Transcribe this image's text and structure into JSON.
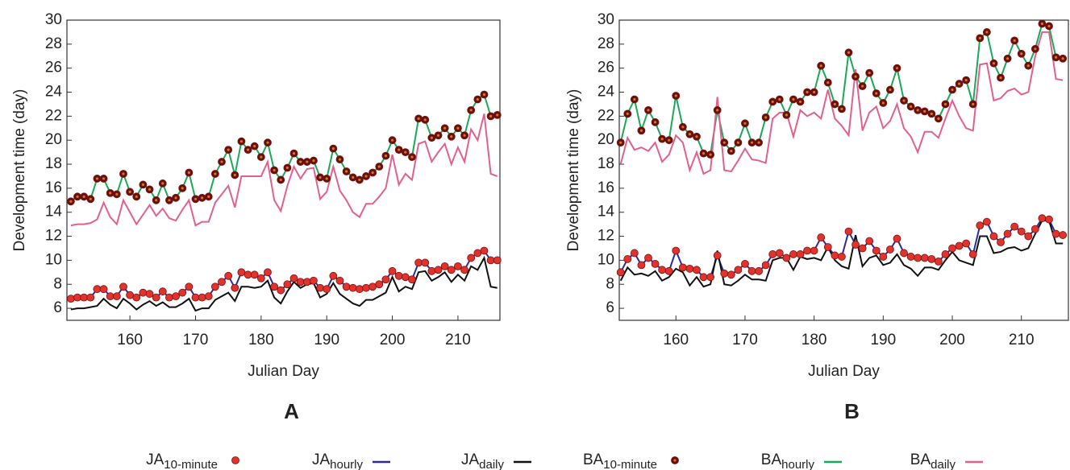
{
  "chart_data": [
    {
      "type": "line",
      "panel": "A",
      "xlabel": "Julian Day",
      "ylabel": "Development time (day)",
      "xlim": [
        150.4,
        216.4
      ],
      "xticks": [
        160,
        170,
        180,
        190,
        200,
        210
      ],
      "ylim": [
        5,
        30
      ],
      "yticks": [
        6,
        8,
        10,
        12,
        14,
        16,
        18,
        20,
        22,
        24,
        26,
        28,
        30
      ],
      "x": [
        151,
        152,
        153,
        154,
        155,
        156,
        157,
        158,
        159,
        160,
        161,
        162,
        163,
        164,
        165,
        166,
        167,
        168,
        169,
        170,
        171,
        172,
        173,
        174,
        175,
        176,
        177,
        178,
        179,
        180,
        181,
        182,
        183,
        184,
        185,
        186,
        187,
        188,
        189,
        190,
        191,
        192,
        193,
        194,
        195,
        196,
        197,
        198,
        199,
        200,
        201,
        202,
        203,
        204,
        205,
        206,
        207,
        208,
        209,
        210,
        211,
        212,
        213,
        214,
        215,
        216
      ],
      "series": [
        {
          "style": "dot",
          "color": "#e2322c",
          "values": [
            6.8,
            6.9,
            6.9,
            6.9,
            7.6,
            7.6,
            7.0,
            7.0,
            7.8,
            7.1,
            6.9,
            7.3,
            7.2,
            6.9,
            7.4,
            6.9,
            7.0,
            7.3,
            7.8,
            6.9,
            6.9,
            7.0,
            7.8,
            8.2,
            8.7,
            7.7,
            9.0,
            8.8,
            8.8,
            8.5,
            9.0,
            7.8,
            7.5,
            8.0,
            8.5,
            8.2,
            8.2,
            8.3,
            7.7,
            7.6,
            8.7,
            8.3,
            7.8,
            7.7,
            7.6,
            7.7,
            7.8,
            8.0,
            8.4,
            9.1,
            8.7,
            8.6,
            8.4,
            9.8,
            9.8,
            9.1,
            9.2,
            9.5,
            9.2,
            9.5,
            9.2,
            10.2,
            10.6,
            10.8,
            10.0,
            10.0
          ]
        },
        {
          "style": "line",
          "color": "#2b2b9c",
          "values": [
            6.8,
            6.9,
            6.9,
            6.9,
            7.6,
            7.6,
            7.0,
            7.0,
            7.8,
            7.1,
            6.9,
            7.3,
            7.2,
            6.9,
            7.4,
            6.9,
            7.0,
            7.3,
            7.8,
            6.9,
            6.9,
            7.0,
            7.8,
            8.2,
            8.7,
            7.7,
            9.0,
            8.8,
            8.8,
            8.5,
            9.0,
            7.8,
            7.5,
            8.0,
            8.5,
            8.2,
            8.2,
            8.3,
            7.7,
            7.6,
            8.7,
            8.3,
            7.8,
            7.7,
            7.6,
            7.7,
            7.8,
            8.0,
            8.4,
            9.1,
            8.7,
            8.6,
            8.4,
            9.8,
            9.8,
            9.1,
            9.2,
            9.5,
            9.2,
            9.5,
            9.2,
            10.2,
            10.6,
            10.8,
            10.0,
            10.0
          ]
        },
        {
          "style": "line",
          "color": "#111111",
          "values": [
            5.9,
            6.0,
            6.0,
            6.1,
            6.2,
            6.8,
            6.3,
            6.0,
            6.8,
            6.4,
            5.9,
            6.3,
            6.6,
            6.2,
            6.5,
            6.1,
            6.1,
            6.4,
            6.8,
            5.8,
            6.0,
            6.0,
            6.7,
            7.0,
            7.3,
            6.6,
            7.8,
            7.8,
            7.7,
            7.8,
            8.3,
            6.9,
            6.4,
            7.4,
            8.2,
            7.7,
            8.0,
            8.1,
            6.9,
            7.2,
            8.1,
            7.2,
            6.8,
            6.4,
            6.2,
            6.7,
            6.7,
            7.0,
            7.3,
            8.6,
            7.4,
            7.8,
            7.6,
            9.0,
            9.1,
            8.3,
            8.6,
            9.0,
            8.2,
            8.8,
            8.3,
            9.5,
            9.2,
            10.2,
            7.8,
            7.7
          ]
        },
        {
          "style": "dot",
          "color": "#6a0e0e",
          "values": [
            14.9,
            15.3,
            15.3,
            15.1,
            16.8,
            16.8,
            15.6,
            15.5,
            17.2,
            15.7,
            15.3,
            16.3,
            15.9,
            15.0,
            16.4,
            15.0,
            15.2,
            16.0,
            17.3,
            15.1,
            15.2,
            15.3,
            17.2,
            18.2,
            19.2,
            17.1,
            19.9,
            19.2,
            19.5,
            18.6,
            19.8,
            17.5,
            16.7,
            17.7,
            18.9,
            18.2,
            18.2,
            18.3,
            16.9,
            16.8,
            19.3,
            18.4,
            17.4,
            16.9,
            16.7,
            17.0,
            17.3,
            17.8,
            18.7,
            20.0,
            19.2,
            19.0,
            18.6,
            21.8,
            21.7,
            20.2,
            20.4,
            21.0,
            20.3,
            21.0,
            20.4,
            22.5,
            23.4,
            23.8,
            22.0,
            22.1
          ]
        },
        {
          "style": "line",
          "color": "#1aa85a",
          "values": [
            14.9,
            15.3,
            15.3,
            15.1,
            16.8,
            16.8,
            15.6,
            15.5,
            17.2,
            15.7,
            15.3,
            16.3,
            15.9,
            15.0,
            16.4,
            15.0,
            15.2,
            16.0,
            17.3,
            15.1,
            15.2,
            15.3,
            17.2,
            18.2,
            19.2,
            17.1,
            19.9,
            19.2,
            19.5,
            18.6,
            19.8,
            17.5,
            16.7,
            17.7,
            18.9,
            18.2,
            18.2,
            18.3,
            16.9,
            16.8,
            19.3,
            18.4,
            17.4,
            16.9,
            16.7,
            17.0,
            17.3,
            17.8,
            18.7,
            20.0,
            19.2,
            19.0,
            18.6,
            21.8,
            21.7,
            20.2,
            20.4,
            21.0,
            20.3,
            21.0,
            20.4,
            22.5,
            23.4,
            23.8,
            22.0,
            22.1
          ]
        },
        {
          "style": "line",
          "color": "#e0608e",
          "values": [
            12.9,
            13.0,
            13.0,
            13.1,
            13.4,
            14.8,
            13.6,
            13.0,
            15.0,
            14.0,
            13.0,
            13.8,
            14.6,
            13.7,
            14.3,
            13.5,
            13.3,
            14.2,
            15.0,
            12.9,
            13.2,
            13.2,
            14.8,
            15.5,
            16.2,
            14.4,
            17.0,
            17.0,
            17.0,
            17.0,
            18.2,
            15.0,
            14.1,
            16.2,
            17.8,
            16.8,
            17.6,
            17.7,
            15.1,
            15.7,
            17.8,
            15.8,
            15.0,
            14.0,
            13.6,
            14.7,
            14.7,
            15.3,
            16.0,
            18.8,
            16.3,
            17.2,
            16.7,
            19.7,
            19.9,
            18.2,
            19.0,
            19.7,
            18.0,
            19.4,
            18.2,
            20.9,
            20.0,
            22.2,
            17.2,
            17.0
          ]
        }
      ]
    },
    {
      "type": "line",
      "panel": "B",
      "xlabel": "Julian Day",
      "ylabel": "Development time (day)",
      "xlim": [
        151.8,
        216.8
      ],
      "xticks": [
        160,
        170,
        180,
        190,
        200,
        210
      ],
      "ylim": [
        5,
        30
      ],
      "yticks": [
        6,
        8,
        10,
        12,
        14,
        16,
        18,
        20,
        22,
        24,
        26,
        28,
        30
      ],
      "x": [
        152,
        153,
        154,
        155,
        156,
        157,
        158,
        159,
        160,
        161,
        162,
        163,
        164,
        165,
        166,
        167,
        168,
        169,
        170,
        171,
        172,
        173,
        174,
        175,
        176,
        177,
        178,
        179,
        180,
        181,
        182,
        183,
        184,
        185,
        186,
        187,
        188,
        189,
        190,
        191,
        192,
        193,
        194,
        195,
        196,
        197,
        198,
        199,
        200,
        201,
        202,
        203,
        204,
        205,
        206,
        207,
        208,
        209,
        210,
        211,
        212,
        213,
        214,
        215,
        216
      ],
      "series": [
        {
          "style": "dot",
          "color": "#e2322c",
          "values": [
            9.0,
            10.1,
            10.6,
            9.6,
            10.2,
            9.7,
            9.2,
            9.1,
            10.8,
            9.4,
            9.3,
            9.2,
            8.6,
            8.6,
            10.4,
            8.9,
            8.8,
            9.2,
            9.7,
            9.1,
            9.1,
            9.6,
            10.5,
            10.6,
            10.2,
            10.5,
            10.5,
            10.8,
            10.8,
            11.9,
            11.1,
            10.4,
            10.3,
            12.4,
            11.3,
            11.0,
            11.6,
            10.8,
            10.3,
            10.9,
            11.8,
            10.6,
            10.3,
            10.2,
            10.2,
            10.1,
            9.9,
            10.5,
            11.0,
            11.2,
            11.4,
            10.5,
            12.9,
            13.2,
            12.0,
            11.5,
            12.2,
            12.8,
            12.4,
            12.0,
            12.6,
            13.5,
            13.4,
            12.2,
            12.1
          ]
        },
        {
          "style": "line",
          "color": "#2b2b9c",
          "values": [
            9.0,
            10.1,
            10.6,
            9.6,
            10.2,
            9.7,
            9.2,
            9.1,
            10.8,
            9.4,
            9.3,
            9.2,
            8.6,
            8.6,
            10.4,
            8.9,
            8.8,
            9.2,
            9.7,
            9.1,
            9.1,
            9.6,
            10.5,
            10.6,
            10.2,
            10.5,
            10.5,
            10.8,
            10.8,
            11.9,
            11.1,
            10.4,
            10.3,
            12.4,
            11.3,
            11.0,
            11.6,
            10.8,
            10.3,
            10.9,
            11.8,
            10.6,
            10.3,
            10.2,
            10.2,
            10.1,
            9.9,
            10.5,
            11.0,
            11.2,
            11.4,
            10.5,
            12.9,
            13.2,
            12.0,
            11.5,
            12.2,
            12.8,
            12.4,
            12.0,
            12.6,
            13.5,
            13.4,
            12.2,
            12.1
          ]
        },
        {
          "style": "line",
          "color": "#111111",
          "values": [
            8.3,
            9.4,
            8.8,
            8.9,
            8.7,
            9.1,
            8.3,
            8.6,
            9.3,
            9.0,
            7.9,
            8.6,
            7.8,
            8.0,
            10.8,
            8.0,
            7.9,
            8.3,
            8.8,
            8.4,
            8.4,
            8.3,
            10.0,
            10.2,
            10.2,
            9.2,
            10.3,
            10.1,
            10.2,
            10.0,
            11.1,
            10.0,
            9.5,
            9.3,
            12.1,
            9.5,
            10.2,
            10.4,
            9.6,
            9.8,
            10.5,
            9.6,
            9.3,
            8.7,
            9.4,
            9.4,
            9.2,
            10.0,
            10.7,
            10.0,
            9.8,
            9.6,
            12.0,
            12.0,
            10.6,
            10.7,
            11.0,
            11.1,
            10.8,
            11.0,
            12.2,
            13.3,
            13.3,
            11.4,
            11.4
          ]
        },
        {
          "style": "dot",
          "color": "#6a0e0e",
          "values": [
            19.8,
            22.2,
            23.4,
            20.8,
            22.5,
            21.5,
            20.1,
            20.0,
            23.7,
            21.1,
            20.5,
            20.3,
            18.9,
            18.8,
            22.5,
            19.8,
            19.1,
            19.8,
            21.4,
            19.8,
            19.8,
            21.9,
            23.2,
            23.4,
            22.1,
            23.4,
            23.2,
            24.0,
            24.0,
            26.2,
            24.8,
            23.0,
            22.6,
            27.3,
            25.3,
            24.5,
            25.6,
            23.9,
            23.1,
            24.2,
            26.0,
            23.3,
            22.8,
            22.5,
            22.4,
            22.2,
            21.8,
            23.0,
            24.2,
            24.7,
            25.0,
            23.0,
            28.5,
            29.0,
            26.4,
            25.2,
            26.8,
            28.3,
            27.2,
            26.2,
            27.6,
            29.7,
            29.5,
            26.9,
            26.8
          ]
        },
        {
          "style": "line",
          "color": "#1aa85a",
          "values": [
            19.8,
            22.2,
            23.4,
            20.8,
            22.5,
            21.5,
            20.1,
            20.0,
            23.7,
            21.1,
            20.5,
            20.3,
            18.9,
            18.8,
            22.5,
            19.8,
            19.1,
            19.8,
            21.4,
            19.8,
            19.8,
            21.9,
            23.2,
            23.4,
            22.1,
            23.4,
            23.2,
            24.0,
            24.0,
            26.2,
            24.8,
            23.0,
            22.6,
            27.3,
            25.3,
            24.5,
            25.6,
            23.9,
            23.1,
            24.2,
            26.0,
            23.3,
            22.8,
            22.5,
            22.4,
            22.2,
            21.8,
            23.0,
            24.2,
            24.7,
            25.0,
            23.0,
            28.5,
            29.0,
            26.4,
            25.2,
            26.8,
            28.3,
            27.2,
            26.2,
            27.6,
            29.7,
            29.5,
            26.9,
            26.8
          ]
        },
        {
          "style": "line",
          "color": "#e0608e",
          "values": [
            18.0,
            20.2,
            19.2,
            19.4,
            19.1,
            19.8,
            18.2,
            18.8,
            20.4,
            19.8,
            17.5,
            19.0,
            17.2,
            17.5,
            23.6,
            17.5,
            17.4,
            18.3,
            19.3,
            18.4,
            18.3,
            18.1,
            21.8,
            22.3,
            22.3,
            20.3,
            22.5,
            22.0,
            22.3,
            21.8,
            24.2,
            21.8,
            21.2,
            20.4,
            25.9,
            20.8,
            22.3,
            22.8,
            21.0,
            21.6,
            23.0,
            21.0,
            20.3,
            19.0,
            20.7,
            20.7,
            20.2,
            21.8,
            23.3,
            22.0,
            21.0,
            20.8,
            26.3,
            26.4,
            23.3,
            23.5,
            24.1,
            24.3,
            23.8,
            24.0,
            27.0,
            29.0,
            29.0,
            25.1,
            25.0
          ]
        }
      ]
    }
  ],
  "legend": [
    {
      "name": "JA",
      "subscript": "10-minute",
      "style": "dot",
      "color": "#e2322c"
    },
    {
      "name": "JA",
      "subscript": "hourly",
      "style": "line",
      "color": "#2b2b9c"
    },
    {
      "name": "JA",
      "subscript": "daily",
      "style": "line",
      "color": "#111111"
    },
    {
      "name": "BA",
      "subscript": "10-minute",
      "style": "dot",
      "color": "#6a0e0e"
    },
    {
      "name": "BA",
      "subscript": "hourly",
      "style": "line",
      "color": "#1aa85a"
    },
    {
      "name": "BA",
      "subscript": "daily",
      "style": "line",
      "color": "#e0608e"
    }
  ]
}
